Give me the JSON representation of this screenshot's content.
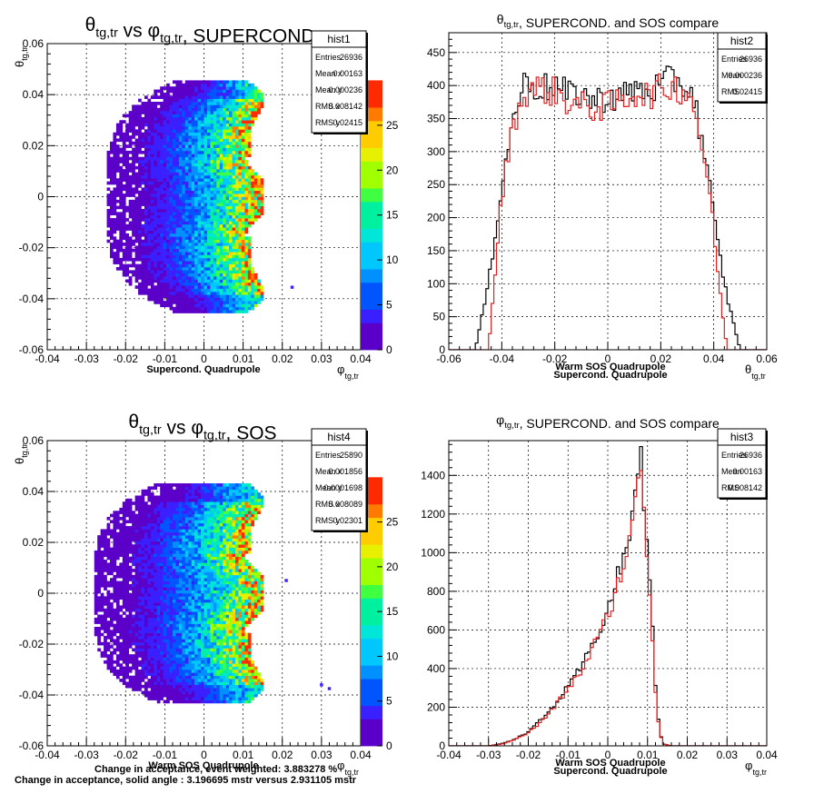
{
  "chart_data": [
    {
      "id": "p1",
      "type": "heatmap",
      "title_main": "θ",
      "title_sub1": "tg,tr",
      "title_mid": " vs φ",
      "title_sub2": "tg,tr",
      "title_end": ", SUPERCOND.",
      "xlabel_main": "φ",
      "xlabel_sub": "tg,tr",
      "ylabel_main": "θ",
      "ylabel_sub": "tg,tr",
      "note": "Supercond. Quadrupole",
      "xlim": [
        -0.04,
        0.04
      ],
      "ylim": [
        -0.06,
        0.06
      ],
      "x_ticks": [
        -0.04,
        -0.03,
        -0.02,
        -0.01,
        0,
        0.01,
        0.02,
        0.03,
        0.04
      ],
      "x_tick_labels": [
        "-0.04",
        "-0.03",
        "-0.02",
        "-0.01",
        "0",
        "0.01",
        "0.02",
        "0.03",
        "0.04"
      ],
      "y_ticks": [
        -0.06,
        -0.04,
        -0.02,
        0,
        0.02,
        0.04,
        0.06
      ],
      "y_tick_labels": [
        "-0.06",
        "-0.04",
        "-0.02",
        "0",
        "0.02",
        "0.04",
        "0.06"
      ],
      "z_ticks": [
        0,
        5,
        10,
        15,
        20,
        25
      ],
      "z_tick_labels": [
        "0",
        "5",
        "10",
        "15",
        "20",
        "25"
      ],
      "zlim": [
        0,
        30
      ],
      "stats": {
        "name": "hist1",
        "rows": [
          {
            "label": "Entries",
            "value": "26936"
          },
          {
            "label": "Mean x",
            "value": "0.00163"
          },
          {
            "label": "Mean y",
            "value": "0.000236"
          },
          {
            "label": "RMS x",
            "value": "0.008142"
          },
          {
            "label": "RMS y",
            "value": "0.02415"
          }
        ]
      },
      "shape": {
        "y_min": -0.045,
        "y_max": 0.045,
        "right_edge_max": 0.015,
        "right_edge_indent": 0.0095,
        "left_edge_center": -0.025,
        "left_edge_tips": -0.008,
        "extra_points": [
          [
            0.0225,
            -0.0355
          ]
        ]
      },
      "grid": true
    },
    {
      "id": "p2",
      "type": "histogram",
      "title_main": "θ",
      "title_sub1": "tg,tr",
      "title_end": ", SUPERCOND. and SOS compare",
      "xlabel_main": "θ",
      "xlabel_sub": "tg,tr",
      "note_red": "Warm SOS Quadrupole",
      "note": "Supercond.  Quadrupole",
      "xlim": [
        -0.06,
        0.06
      ],
      "ylim": [
        0,
        480
      ],
      "x_ticks": [
        -0.06,
        -0.04,
        -0.02,
        0,
        0.02,
        0.04,
        0.06
      ],
      "x_tick_labels": [
        "-0.06",
        "-0.04",
        "-0.02",
        "0",
        "0.02",
        "0.04",
        "0.06"
      ],
      "y_ticks": [
        0,
        50,
        100,
        150,
        200,
        250,
        300,
        350,
        400,
        450
      ],
      "y_tick_labels": [
        "0",
        "50",
        "100",
        "150",
        "200",
        "250",
        "300",
        "350",
        "400",
        "450"
      ],
      "stats": {
        "name": "hist2",
        "rows": [
          {
            "label": "Entries",
            "value": "26936"
          },
          {
            "label": "Mean",
            "value": "0.000236"
          },
          {
            "label": "RMS",
            "value": "0.02415"
          }
        ]
      },
      "series": [
        {
          "name": "Supercond. Quadrupole",
          "color": "#000000",
          "x": [
            -0.05,
            -0.045,
            -0.042,
            -0.04,
            -0.038,
            -0.035,
            -0.032,
            -0.03,
            -0.025,
            -0.02,
            -0.015,
            -0.01,
            -0.005,
            0,
            0.005,
            0.01,
            0.015,
            0.02,
            0.025,
            0.03,
            0.032,
            0.035,
            0.038,
            0.04,
            0.042,
            0.045,
            0.05
          ],
          "y": [
            0,
            100,
            190,
            250,
            300,
            360,
            400,
            405,
            395,
            400,
            385,
            390,
            375,
            385,
            380,
            395,
            390,
            400,
            410,
            395,
            390,
            330,
            260,
            200,
            150,
            80,
            0
          ]
        },
        {
          "name": "Warm SOS Quadrupole",
          "color": "#e02020",
          "x": [
            -0.05,
            -0.045,
            -0.042,
            -0.04,
            -0.038,
            -0.035,
            -0.032,
            -0.03,
            -0.025,
            -0.02,
            -0.015,
            -0.01,
            -0.005,
            0,
            0.005,
            0.01,
            0.015,
            0.02,
            0.025,
            0.03,
            0.032,
            0.035,
            0.038,
            0.04,
            0.042,
            0.045,
            0.05
          ],
          "y": [
            0,
            0,
            140,
            230,
            290,
            350,
            380,
            395,
            395,
            390,
            375,
            370,
            365,
            370,
            375,
            390,
            385,
            395,
            400,
            390,
            380,
            320,
            250,
            180,
            100,
            0,
            0
          ]
        }
      ],
      "grid": true
    },
    {
      "id": "p4",
      "type": "heatmap",
      "title_main": "θ",
      "title_sub1": "tg,tr",
      "title_mid": " vs φ",
      "title_sub2": "tg,tr",
      "title_end": ", SOS",
      "xlabel_main": "φ",
      "xlabel_sub": "tg,tr",
      "ylabel_main": "θ",
      "ylabel_sub": "tg,tr",
      "note": "Warm SOS Quadrupole",
      "xlim": [
        -0.04,
        0.04
      ],
      "ylim": [
        -0.06,
        0.06
      ],
      "x_ticks": [
        -0.04,
        -0.03,
        -0.02,
        -0.01,
        0,
        0.01,
        0.02,
        0.03,
        0.04
      ],
      "x_tick_labels": [
        "-0.04",
        "-0.03",
        "-0.02",
        "-0.01",
        "0",
        "0.01",
        "0.02",
        "0.03",
        "0.04"
      ],
      "y_ticks": [
        -0.06,
        -0.04,
        -0.02,
        0,
        0.02,
        0.04,
        0.06
      ],
      "y_tick_labels": [
        "-0.06",
        "-0.04",
        "-0.02",
        "0",
        "0.02",
        "0.04",
        "0.06"
      ],
      "z_ticks": [
        0,
        5,
        10,
        15,
        20,
        25
      ],
      "z_tick_labels": [
        "0",
        "5",
        "10",
        "15",
        "20",
        "25"
      ],
      "zlim": [
        0,
        30
      ],
      "stats": {
        "name": "hist4",
        "rows": [
          {
            "label": "Entries",
            "value": "25890"
          },
          {
            "label": "Mean x",
            "value": "0.001856"
          },
          {
            "label": "Mean y",
            "value": "0.0001698"
          },
          {
            "label": "RMS x",
            "value": "0.008089"
          },
          {
            "label": "RMS y",
            "value": "0.02301"
          }
        ]
      },
      "shape": {
        "y_min": -0.043,
        "y_max": 0.043,
        "right_edge_max": 0.015,
        "right_edge_indent": 0.0095,
        "left_edge_center": -0.028,
        "left_edge_tips": -0.012,
        "extra_points": [
          [
            0.021,
            0.005
          ],
          [
            0.03,
            -0.036
          ],
          [
            0.032,
            -0.0375
          ]
        ]
      },
      "grid": true
    },
    {
      "id": "p3",
      "type": "histogram",
      "title_main": "φ",
      "title_sub1": "tg,tr",
      "title_end": ", SUPERCOND. and SOS compare",
      "xlabel_main": "φ",
      "xlabel_sub": "tg,tr",
      "note_red": "Warm SOS Quadrupole",
      "note": "Supercond.  Quadrupole",
      "xlim": [
        -0.04,
        0.04
      ],
      "ylim": [
        0,
        1580
      ],
      "x_ticks": [
        -0.04,
        -0.03,
        -0.02,
        -0.01,
        0,
        0.01,
        0.02,
        0.03,
        0.04
      ],
      "x_tick_labels": [
        "-0.04",
        "-0.03",
        "-0.02",
        "-0.01",
        "0",
        "0.01",
        "0.02",
        "0.03",
        "0.04"
      ],
      "y_ticks": [
        0,
        200,
        400,
        600,
        800,
        1000,
        1200,
        1400
      ],
      "y_tick_labels": [
        "0",
        "200",
        "400",
        "600",
        "800",
        "1000",
        "1200",
        "1400"
      ],
      "stats": {
        "name": "hist3",
        "rows": [
          {
            "label": "Entries",
            "value": "26936"
          },
          {
            "label": "Mean",
            "value": "0.00163"
          },
          {
            "label": "RMS",
            "value": "0.008142"
          }
        ]
      },
      "series": [
        {
          "name": "Supercond. Quadrupole",
          "color": "#000000",
          "x": [
            -0.03,
            -0.027,
            -0.024,
            -0.021,
            -0.018,
            -0.015,
            -0.012,
            -0.009,
            -0.006,
            -0.003,
            0,
            0.002,
            0.004,
            0.006,
            0.007,
            0.0075,
            0.008,
            0.0085,
            0.009,
            0.0095,
            0.01,
            0.011,
            0.012,
            0.013,
            0.014,
            0.016
          ],
          "y": [
            0,
            10,
            30,
            60,
            110,
            170,
            250,
            330,
            430,
            560,
            700,
            840,
            970,
            1150,
            1300,
            1420,
            1560,
            1450,
            1300,
            1200,
            1000,
            700,
            300,
            80,
            10,
            0
          ]
        },
        {
          "name": "Warm SOS Quadrupole",
          "color": "#e02020",
          "x": [
            -0.03,
            -0.027,
            -0.024,
            -0.021,
            -0.018,
            -0.015,
            -0.012,
            -0.009,
            -0.006,
            -0.003,
            0,
            0.002,
            0.004,
            0.006,
            0.007,
            0.0075,
            0.008,
            0.0085,
            0.009,
            0.0095,
            0.01,
            0.011,
            0.012,
            0.013,
            0.014,
            0.016
          ],
          "y": [
            0,
            8,
            28,
            55,
            100,
            160,
            240,
            320,
            410,
            540,
            670,
            800,
            940,
            1100,
            1250,
            1380,
            1520,
            1420,
            1280,
            1150,
            950,
            650,
            280,
            70,
            10,
            0
          ]
        }
      ],
      "grid": true
    }
  ],
  "footer": {
    "line1": "Change in acceptance, event weighted: 3.883278 %",
    "line2": "Change in acceptance, solid angle   : 3.196695 mstr versus 2.931105 mstr"
  }
}
